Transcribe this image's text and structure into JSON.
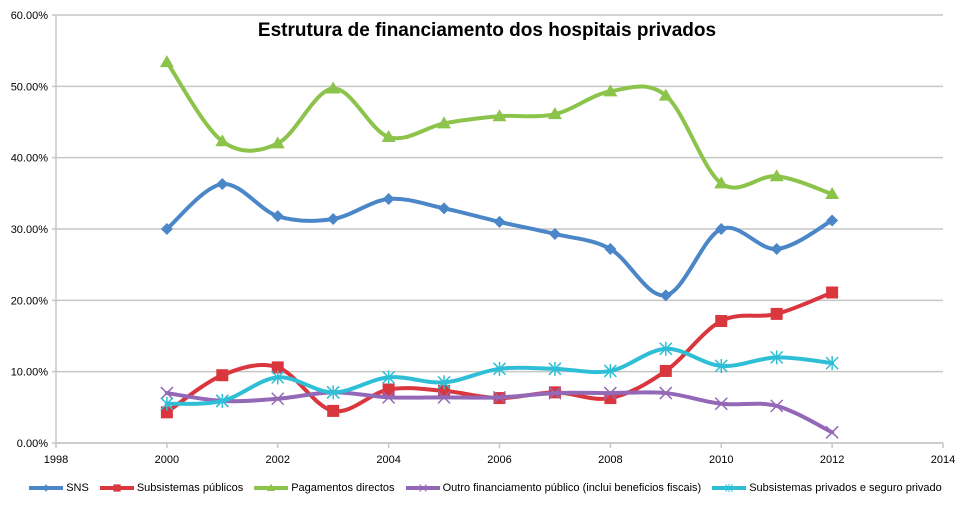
{
  "chart_data": {
    "type": "line",
    "title": "Estrutura de financiamento dos hospitais privados",
    "xlabel": "",
    "ylabel": "",
    "xlim": [
      1998,
      2014
    ],
    "ylim": [
      0,
      60
    ],
    "x_ticks": [
      "1998",
      "2000",
      "2002",
      "2004",
      "2006",
      "2008",
      "2010",
      "2012",
      "2014"
    ],
    "y_ticks": [
      "0.00%",
      "10.00%",
      "20.00%",
      "30.00%",
      "40.00%",
      "50.00%",
      "60.00%"
    ],
    "grid": "horizontal",
    "legend_position": "bottom",
    "smooth": true,
    "x": [
      2000,
      2001,
      2002,
      2003,
      2004,
      2005,
      2006,
      2007,
      2008,
      2009,
      2010,
      2011,
      2012
    ],
    "series": [
      {
        "name": "SNS",
        "color": "#4a86c8",
        "marker": "diamond",
        "values": [
          30.0,
          36.3,
          31.8,
          31.4,
          34.2,
          32.9,
          31.0,
          29.3,
          27.2,
          20.7,
          30.0,
          27.2,
          31.2
        ]
      },
      {
        "name": "Subsistemas públicos",
        "color": "#d9363e",
        "marker": "square",
        "values": [
          4.3,
          9.5,
          10.6,
          4.5,
          7.5,
          7.3,
          6.3,
          7.1,
          6.3,
          10.1,
          17.1,
          18.1,
          21.1
        ]
      },
      {
        "name": "Pagamentos directos",
        "color": "#8cc34a",
        "marker": "triangle",
        "values": [
          53.4,
          42.3,
          42.0,
          49.7,
          42.9,
          44.8,
          45.8,
          46.1,
          49.3,
          48.7,
          36.4,
          37.4,
          34.9
        ]
      },
      {
        "name": "Outro financiamento público (inclui beneficios fiscais)",
        "color": "#9368b7",
        "marker": "x",
        "values": [
          7.0,
          5.9,
          6.2,
          7.1,
          6.4,
          6.4,
          6.4,
          7.0,
          7.0,
          7.0,
          5.5,
          5.2,
          1.5
        ]
      },
      {
        "name": "Subsistemas privados e seguro privado",
        "color": "#2ebfd6",
        "marker": "star",
        "values": [
          5.5,
          5.9,
          9.2,
          7.1,
          9.2,
          8.5,
          10.4,
          10.4,
          10.1,
          13.2,
          10.8,
          12.0,
          11.2
        ]
      }
    ]
  }
}
